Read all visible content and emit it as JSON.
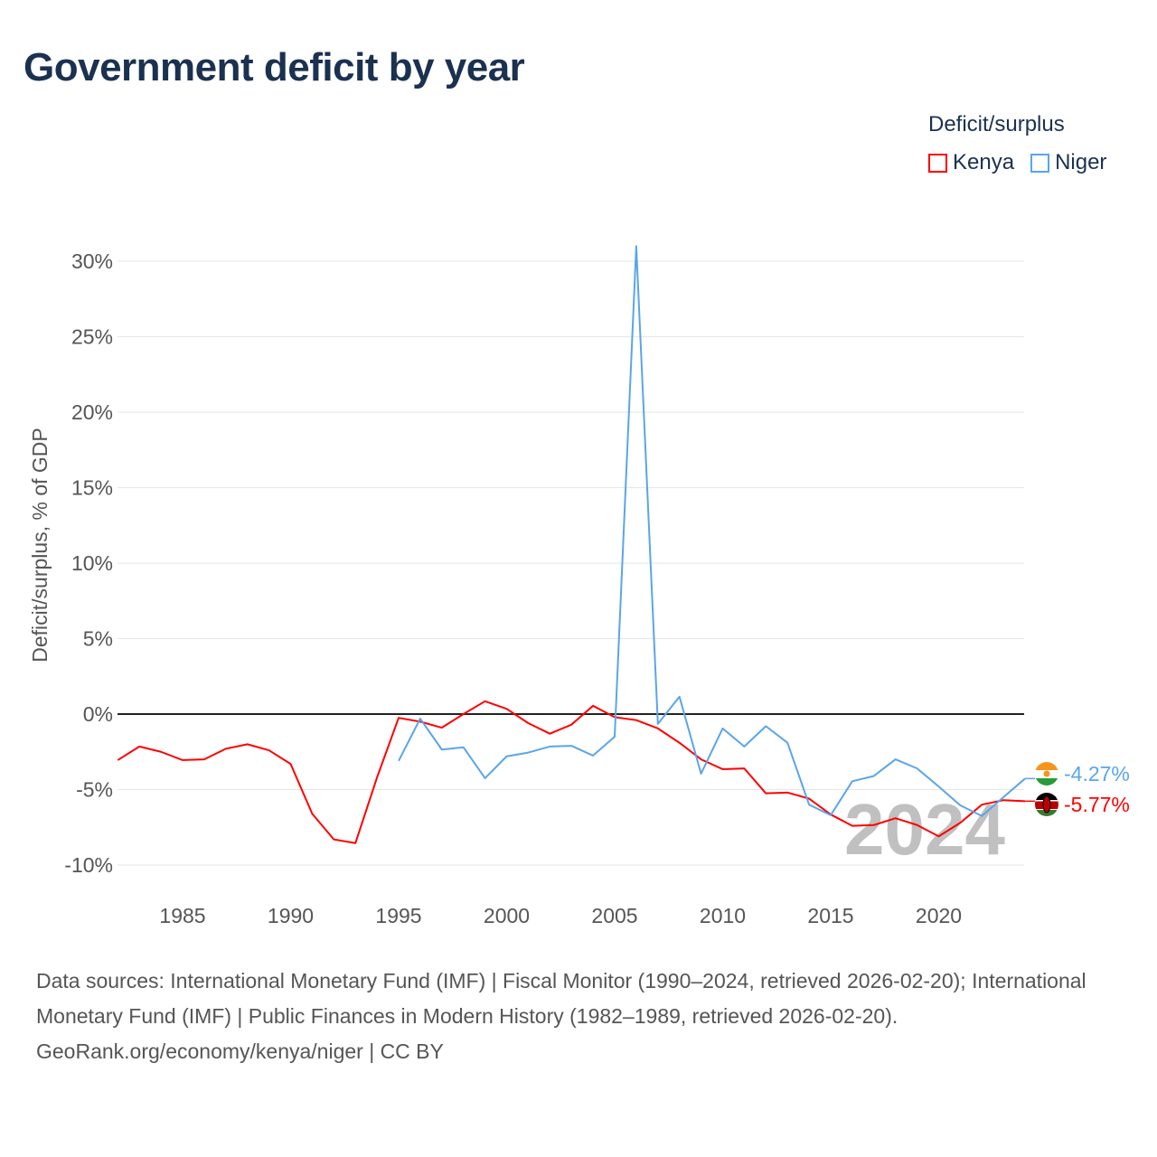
{
  "title": "Government deficit by year",
  "legend": {
    "title": "Deficit/surplus",
    "items": [
      {
        "name": "Kenya",
        "color": "#ff0000"
      },
      {
        "name": "Niger",
        "color": "#5aa5ea"
      }
    ]
  },
  "watermark_year": "2024",
  "footer": {
    "sources": "Data sources: International Monetary Fund (IMF) | Fiscal Monitor (1990–2024, retrieved 2026-02-20); International Monetary Fund (IMF) | Public Finances in Modern History (1982–1989, retrieved 2026-02-20).",
    "credit": "GeoRank.org/economy/kenya/niger | CC BY"
  },
  "chart_data": {
    "type": "line",
    "title": "Government deficit by year",
    "xlabel": "",
    "ylabel": "Deficit/surplus, % of GDP",
    "xlim": [
      1982,
      2024
    ],
    "ylim": [
      -11,
      31
    ],
    "x_ticks": [
      "1985",
      "1990",
      "1995",
      "2000",
      "2005",
      "2010",
      "2015",
      "2020"
    ],
    "y_ticks": [
      {
        "v": 30,
        "label": "30%"
      },
      {
        "v": 25,
        "label": "25%"
      },
      {
        "v": 20,
        "label": "20%"
      },
      {
        "v": 15,
        "label": "15%"
      },
      {
        "v": 10,
        "label": "10%"
      },
      {
        "v": 5,
        "label": "5%"
      },
      {
        "v": 0,
        "label": "0%"
      },
      {
        "v": -5,
        "label": "-5%"
      },
      {
        "v": -10,
        "label": "-10%"
      }
    ],
    "series": [
      {
        "name": "Kenya",
        "color": "#ff0000",
        "end_label": "-5.77%",
        "start_year": 1982,
        "values": [
          -3.05,
          -2.15,
          -2.5,
          -3.05,
          -3.0,
          -2.3,
          -2.0,
          -2.4,
          -3.3,
          -6.6,
          -8.3,
          -8.55,
          -4.2,
          -0.25,
          -0.5,
          -0.9,
          0.0,
          0.85,
          0.35,
          -0.6,
          -1.3,
          -0.7,
          0.55,
          -0.2,
          -0.4,
          -0.95,
          -1.9,
          -3.0,
          -3.65,
          -3.6,
          -5.25,
          -5.2,
          -5.6,
          -6.65,
          -7.4,
          -7.35,
          -6.9,
          -7.35,
          -8.1,
          -7.2,
          -6.0,
          -5.7,
          -5.77
        ]
      },
      {
        "name": "Niger",
        "color": "#5aa5ea",
        "end_label": "-4.27%",
        "start_year": 1995,
        "values": [
          -3.1,
          -0.3,
          -2.35,
          -2.2,
          -4.25,
          -2.8,
          -2.55,
          -2.15,
          -2.1,
          -2.75,
          -1.5,
          31.0,
          -0.65,
          1.15,
          -3.95,
          -0.95,
          -2.15,
          -0.8,
          -1.9,
          -6.0,
          -6.7,
          -4.45,
          -4.1,
          -3.0,
          -3.6,
          -4.8,
          -6.05,
          -6.75,
          -5.5,
          -4.27
        ]
      }
    ],
    "grid": true,
    "legend_position": "top-right"
  }
}
